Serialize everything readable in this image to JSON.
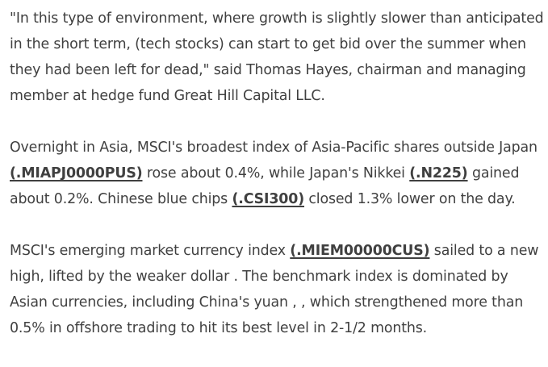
{
  "article": {
    "paragraphs": [
      {
        "segments": [
          {
            "type": "text",
            "text": "\"In this type of environment, where growth is slightly slower than anticipated in the short term, (tech stocks) can start to get bid over the summer when they had been left for dead,\" said Thomas Hayes, chairman and managing member at hedge fund Great Hill Capital LLC."
          }
        ]
      },
      {
        "segments": [
          {
            "type": "text",
            "text": "Overnight in Asia, MSCI's broadest index of Asia-Pacific shares outside Japan "
          },
          {
            "type": "link",
            "text": "(.MIAPJ0000PUS)"
          },
          {
            "type": "text",
            "text": " rose about 0.4%, while Japan's Nikkei "
          },
          {
            "type": "link",
            "text": "(.N225)"
          },
          {
            "type": "text",
            "text": " gained about 0.2%. Chinese blue chips "
          },
          {
            "type": "link",
            "text": "(.CSI300)"
          },
          {
            "type": "text",
            "text": " closed 1.3% lower on the day."
          }
        ]
      },
      {
        "segments": [
          {
            "type": "text",
            "text": "MSCI's emerging market currency index "
          },
          {
            "type": "link",
            "text": "(.MIEM00000CUS)"
          },
          {
            "type": "text",
            "text": " sailed to a new high, lifted by the weaker dollar . The benchmark index is dominated by Asian currencies, including China's yuan , , which strengthened more than 0.5% in offshore trading to hit its best level in 2-1/2 months."
          }
        ]
      }
    ]
  }
}
